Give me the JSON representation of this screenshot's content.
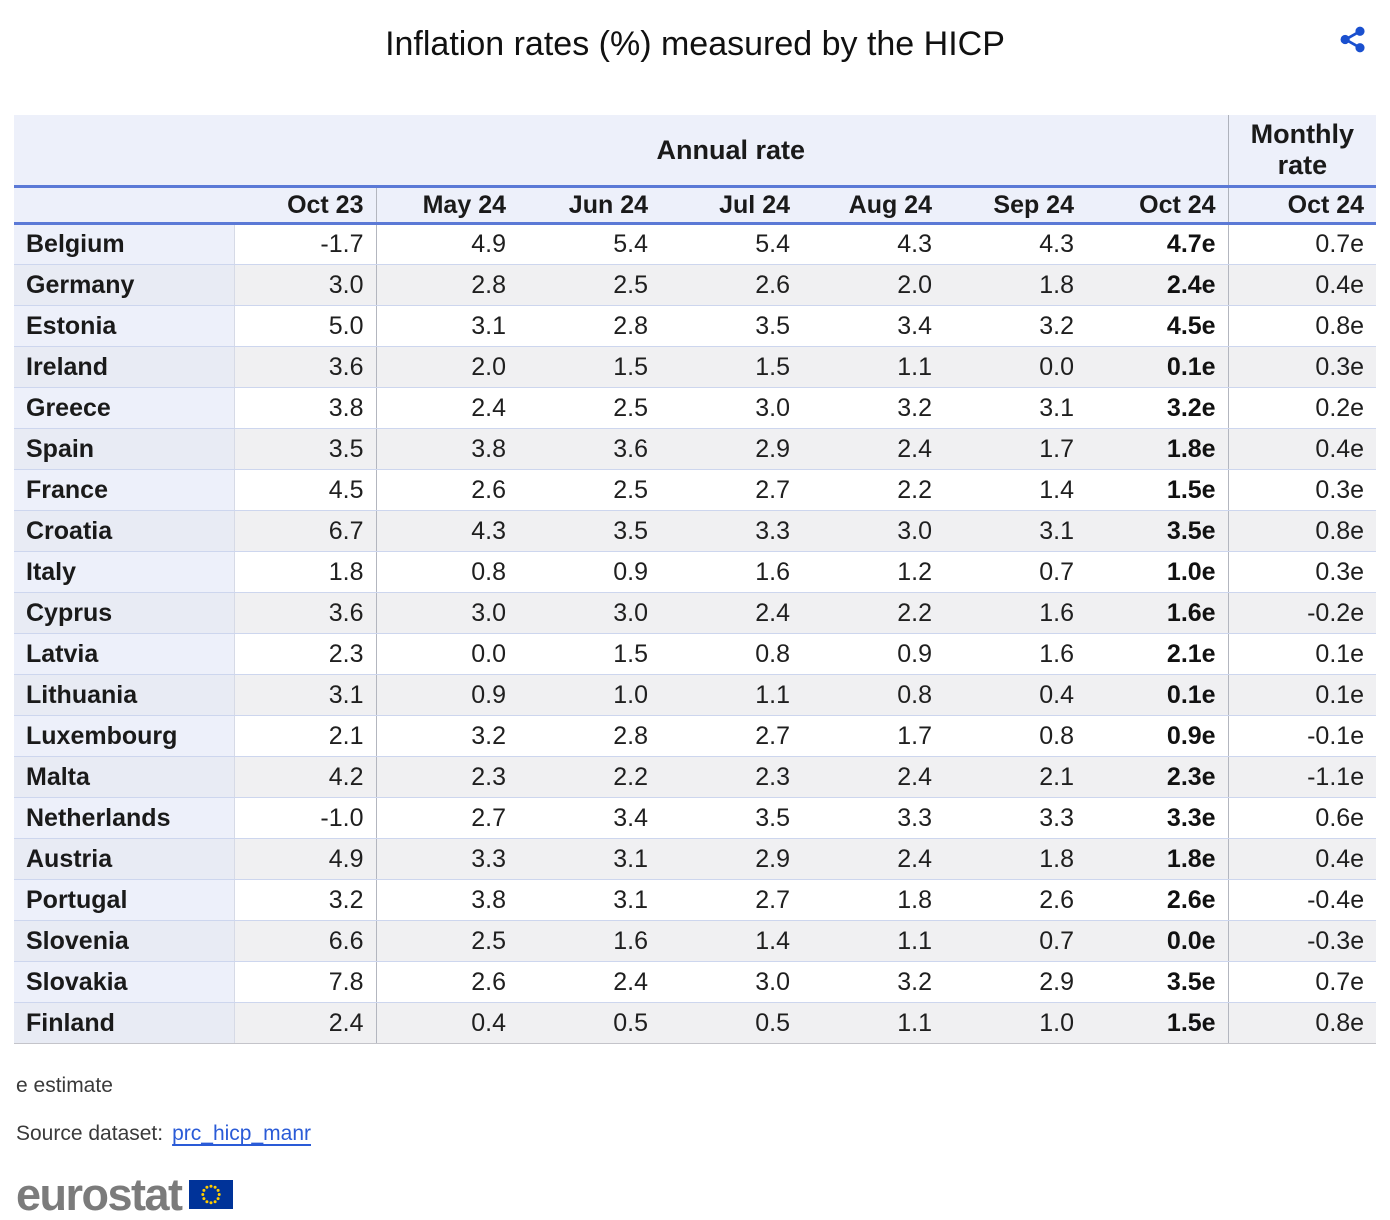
{
  "title": "Inflation rates (%) measured by the HICP",
  "icons": {
    "share_icon": "share-network",
    "eu_flag_icon": "eu-flag-with-stars"
  },
  "chart_data": {
    "type": "table",
    "title": "Inflation rates (%) measured by the HICP",
    "group_headers": {
      "annual": "Annual rate",
      "monthly": "Monthly rate"
    },
    "annual_columns": [
      "Oct 23",
      "May 24",
      "Jun 24",
      "Jul 24",
      "Aug 24",
      "Sep 24",
      "Oct 24"
    ],
    "monthly_column": "Oct 24",
    "rows": [
      {
        "country": "Belgium",
        "annual": [
          "-1.7",
          "4.9",
          "5.4",
          "5.4",
          "4.3",
          "4.3",
          "4.7e"
        ],
        "monthly": "0.7e"
      },
      {
        "country": "Germany",
        "annual": [
          "3.0",
          "2.8",
          "2.5",
          "2.6",
          "2.0",
          "1.8",
          "2.4e"
        ],
        "monthly": "0.4e"
      },
      {
        "country": "Estonia",
        "annual": [
          "5.0",
          "3.1",
          "2.8",
          "3.5",
          "3.4",
          "3.2",
          "4.5e"
        ],
        "monthly": "0.8e"
      },
      {
        "country": "Ireland",
        "annual": [
          "3.6",
          "2.0",
          "1.5",
          "1.5",
          "1.1",
          "0.0",
          "0.1e"
        ],
        "monthly": "0.3e"
      },
      {
        "country": "Greece",
        "annual": [
          "3.8",
          "2.4",
          "2.5",
          "3.0",
          "3.2",
          "3.1",
          "3.2e"
        ],
        "monthly": "0.2e"
      },
      {
        "country": "Spain",
        "annual": [
          "3.5",
          "3.8",
          "3.6",
          "2.9",
          "2.4",
          "1.7",
          "1.8e"
        ],
        "monthly": "0.4e"
      },
      {
        "country": "France",
        "annual": [
          "4.5",
          "2.6",
          "2.5",
          "2.7",
          "2.2",
          "1.4",
          "1.5e"
        ],
        "monthly": "0.3e"
      },
      {
        "country": "Croatia",
        "annual": [
          "6.7",
          "4.3",
          "3.5",
          "3.3",
          "3.0",
          "3.1",
          "3.5e"
        ],
        "monthly": "0.8e"
      },
      {
        "country": "Italy",
        "annual": [
          "1.8",
          "0.8",
          "0.9",
          "1.6",
          "1.2",
          "0.7",
          "1.0e"
        ],
        "monthly": "0.3e"
      },
      {
        "country": "Cyprus",
        "annual": [
          "3.6",
          "3.0",
          "3.0",
          "2.4",
          "2.2",
          "1.6",
          "1.6e"
        ],
        "monthly": "-0.2e"
      },
      {
        "country": "Latvia",
        "annual": [
          "2.3",
          "0.0",
          "1.5",
          "0.8",
          "0.9",
          "1.6",
          "2.1e"
        ],
        "monthly": "0.1e"
      },
      {
        "country": "Lithuania",
        "annual": [
          "3.1",
          "0.9",
          "1.0",
          "1.1",
          "0.8",
          "0.4",
          "0.1e"
        ],
        "monthly": "0.1e"
      },
      {
        "country": "Luxembourg",
        "annual": [
          "2.1",
          "3.2",
          "2.8",
          "2.7",
          "1.7",
          "0.8",
          "0.9e"
        ],
        "monthly": "-0.1e"
      },
      {
        "country": "Malta",
        "annual": [
          "4.2",
          "2.3",
          "2.2",
          "2.3",
          "2.4",
          "2.1",
          "2.3e"
        ],
        "monthly": "-1.1e"
      },
      {
        "country": "Netherlands",
        "annual": [
          "-1.0",
          "2.7",
          "3.4",
          "3.5",
          "3.3",
          "3.3",
          "3.3e"
        ],
        "monthly": "0.6e"
      },
      {
        "country": "Austria",
        "annual": [
          "4.9",
          "3.3",
          "3.1",
          "2.9",
          "2.4",
          "1.8",
          "1.8e"
        ],
        "monthly": "0.4e"
      },
      {
        "country": "Portugal",
        "annual": [
          "3.2",
          "3.8",
          "3.1",
          "2.7",
          "1.8",
          "2.6",
          "2.6e"
        ],
        "monthly": "-0.4e"
      },
      {
        "country": "Slovenia",
        "annual": [
          "6.6",
          "2.5",
          "1.6",
          "1.4",
          "1.1",
          "0.7",
          "0.0e"
        ],
        "monthly": "-0.3e"
      },
      {
        "country": "Slovakia",
        "annual": [
          "7.8",
          "2.6",
          "2.4",
          "3.0",
          "3.2",
          "2.9",
          "3.5e"
        ],
        "monthly": "0.7e"
      },
      {
        "country": "Finland",
        "annual": [
          "2.4",
          "0.4",
          "0.5",
          "0.5",
          "1.1",
          "1.0",
          "1.5e"
        ],
        "monthly": "0.8e"
      }
    ]
  },
  "footnotes": {
    "estimate": "e estimate",
    "source_label": "Source dataset:",
    "source_link": "prc_hicp_manr"
  },
  "logo": {
    "text": "eurostat"
  },
  "colors": {
    "header_fill": "#edf0fa",
    "header_rule_blue": "#5b79d6",
    "row_alt_fill": "#f0f0f2",
    "country_col_fill": "#edf0fa",
    "country_col_alt_fill": "#e8ebf4",
    "row_divider": "#cdd6ee",
    "column_divider_gray": "#b3b6bf",
    "link_blue": "#2a5bd7",
    "share_icon_blue": "#1a50cf",
    "eu_flag_blue": "#003399",
    "eu_star_yellow": "#ffcc00",
    "logo_gray": "#7b7b7b"
  }
}
